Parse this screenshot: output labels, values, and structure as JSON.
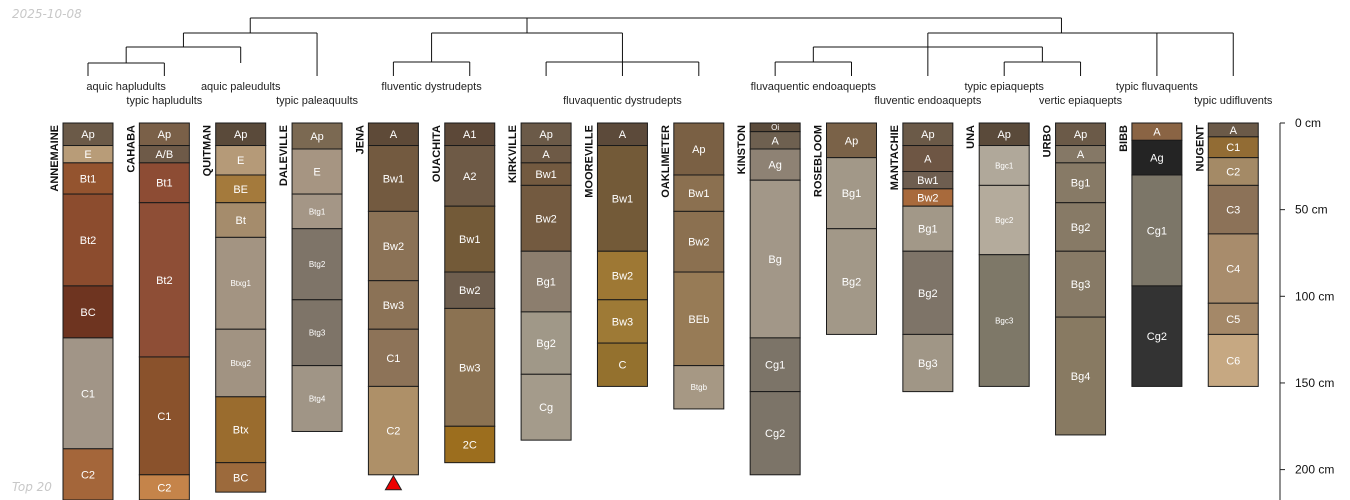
{
  "date_label": "2025-10-08",
  "footnote": "Top 20",
  "chart_data": {
    "type": "soil-profile-sketch",
    "depth_unit": "cm",
    "depth_axis": {
      "range": [
        0,
        220
      ],
      "ticks": [
        0,
        50,
        100,
        150,
        200
      ],
      "tick_labels": [
        "0 cm",
        "50 cm",
        "100 cm",
        "150 cm",
        "200 cm"
      ]
    },
    "taxa": [
      {
        "name": "aquic hapludults",
        "members": [
          "ANNEMAINE",
          "CAHABA"
        ]
      },
      {
        "name": "typic hapludults",
        "members": [
          "CAHABA"
        ]
      },
      {
        "name": "aquic paleudults",
        "members": [
          "QUITMAN"
        ]
      },
      {
        "name": "typic paleaquults",
        "members": [
          "DALEVILLE"
        ]
      },
      {
        "name": "fluventic dystrudepts",
        "members": [
          "JENA",
          "OUACHITA"
        ]
      },
      {
        "name": "fluvaquentic dystrudepts",
        "members": [
          "KIRKVILLE",
          "MOOREVILLE",
          "OAKLIMETER"
        ]
      },
      {
        "name": "fluvaquentic endoaquepts",
        "members": [
          "KINSTON",
          "ROSEBLOOM"
        ]
      },
      {
        "name": "fluventic endoaquepts",
        "members": [
          "MANTACHIE"
        ]
      },
      {
        "name": "typic epiaquepts",
        "members": [
          "UNA"
        ]
      },
      {
        "name": "vertic epiaquepts",
        "members": [
          "URBO"
        ]
      },
      {
        "name": "typic fluvaquents",
        "members": [
          "BIBB"
        ]
      },
      {
        "name": "typic udifluvents",
        "members": [
          "NUGENT"
        ]
      }
    ],
    "profiles": [
      {
        "name": "ANNEMAINE",
        "horizons": [
          {
            "name": "Ap",
            "top": 0,
            "bottom": 13,
            "color": "#6b5a48"
          },
          {
            "name": "E",
            "top": 13,
            "bottom": 23,
            "color": "#b89c78"
          },
          {
            "name": "Bt1",
            "top": 23,
            "bottom": 41,
            "color": "#94542f"
          },
          {
            "name": "Bt2",
            "top": 41,
            "bottom": 94,
            "color": "#8c4c2e"
          },
          {
            "name": "BC",
            "top": 94,
            "bottom": 124,
            "color": "#6e3420"
          },
          {
            "name": "C1",
            "top": 124,
            "bottom": 188,
            "color": "#a19587"
          },
          {
            "name": "C2",
            "top": 188,
            "bottom": 220,
            "color": "#a4663a"
          }
        ]
      },
      {
        "name": "CAHABA",
        "horizons": [
          {
            "name": "Ap",
            "top": 0,
            "bottom": 13,
            "color": "#7a6048"
          },
          {
            "name": "A/B",
            "top": 13,
            "bottom": 23,
            "color": "#6e5a48"
          },
          {
            "name": "Bt1",
            "top": 23,
            "bottom": 46,
            "color": "#8d4c34"
          },
          {
            "name": "Bt2",
            "top": 46,
            "bottom": 135,
            "color": "#8e4e36"
          },
          {
            "name": "C1",
            "top": 135,
            "bottom": 203,
            "color": "#8a522c"
          },
          {
            "name": "C2",
            "top": 203,
            "bottom": 220,
            "color": "#c5844a"
          }
        ]
      },
      {
        "name": "QUITMAN",
        "horizons": [
          {
            "name": "Ap",
            "top": 0,
            "bottom": 13,
            "color": "#5a4a3a"
          },
          {
            "name": "E",
            "top": 13,
            "bottom": 30,
            "color": "#b59a78"
          },
          {
            "name": "BE",
            "top": 30,
            "bottom": 46,
            "color": "#a47a3c"
          },
          {
            "name": "Bt",
            "top": 46,
            "bottom": 66,
            "color": "#a58c6c"
          },
          {
            "name": "Btxg1",
            "top": 66,
            "bottom": 119,
            "color": "#a39482"
          },
          {
            "name": "Btxg2",
            "top": 119,
            "bottom": 158,
            "color": "#a19382"
          },
          {
            "name": "Btx",
            "top": 158,
            "bottom": 196,
            "color": "#9a6c2e"
          },
          {
            "name": "BC",
            "top": 196,
            "bottom": 213,
            "color": "#9c6a3c"
          }
        ]
      },
      {
        "name": "DALEVILLE",
        "horizons": [
          {
            "name": "Ap",
            "top": 0,
            "bottom": 15,
            "color": "#7b6952"
          },
          {
            "name": "E",
            "top": 15,
            "bottom": 41,
            "color": "#a69582"
          },
          {
            "name": "Btg1",
            "top": 41,
            "bottom": 61,
            "color": "#a49686"
          },
          {
            "name": "Btg2",
            "top": 61,
            "bottom": 102,
            "color": "#7e7468"
          },
          {
            "name": "Btg3",
            "top": 102,
            "bottom": 140,
            "color": "#7e7468"
          },
          {
            "name": "Btg4",
            "top": 140,
            "bottom": 178,
            "color": "#a09586"
          }
        ]
      },
      {
        "name": "JENA",
        "horizons": [
          {
            "name": "A",
            "top": 0,
            "bottom": 13,
            "color": "#5e4a38"
          },
          {
            "name": "Bw1",
            "top": 13,
            "bottom": 51,
            "color": "#735a40"
          },
          {
            "name": "Bw2",
            "top": 51,
            "bottom": 91,
            "color": "#8b7256"
          },
          {
            "name": "Bw3",
            "top": 91,
            "bottom": 119,
            "color": "#8b7256"
          },
          {
            "name": "C1",
            "top": 119,
            "bottom": 152,
            "color": "#8d7358"
          },
          {
            "name": "C2",
            "top": 152,
            "bottom": 203,
            "color": "#ae9068"
          }
        ]
      },
      {
        "name": "OUACHITA",
        "horizons": [
          {
            "name": "A1",
            "top": 0,
            "bottom": 13,
            "color": "#5c4838"
          },
          {
            "name": "A2",
            "top": 13,
            "bottom": 48,
            "color": "#6e5a46"
          },
          {
            "name": "Bw1",
            "top": 48,
            "bottom": 86,
            "color": "#735a38"
          },
          {
            "name": "Bw2",
            "top": 86,
            "bottom": 107,
            "color": "#6e5e4e"
          },
          {
            "name": "Bw3",
            "top": 107,
            "bottom": 175,
            "color": "#8b7252"
          },
          {
            "name": "2C",
            "top": 175,
            "bottom": 196,
            "color": "#9c6e1e"
          }
        ]
      },
      {
        "name": "KIRKVILLE",
        "horizons": [
          {
            "name": "Ap",
            "top": 0,
            "bottom": 13,
            "color": "#6b5a48"
          },
          {
            "name": "A",
            "top": 13,
            "bottom": 23,
            "color": "#6e5a46"
          },
          {
            "name": "Bw1",
            "top": 23,
            "bottom": 36,
            "color": "#735a40"
          },
          {
            "name": "Bw2",
            "top": 36,
            "bottom": 74,
            "color": "#735a40"
          },
          {
            "name": "Bg1",
            "top": 74,
            "bottom": 109,
            "color": "#8c7e6e"
          },
          {
            "name": "Bg2",
            "top": 109,
            "bottom": 145,
            "color": "#a09888"
          },
          {
            "name": "Cg",
            "top": 145,
            "bottom": 183,
            "color": "#a49b8b"
          }
        ]
      },
      {
        "name": "MOOREVILLE",
        "horizons": [
          {
            "name": "A",
            "top": 0,
            "bottom": 13,
            "color": "#5c4a3a"
          },
          {
            "name": "Bw1",
            "top": 13,
            "bottom": 74,
            "color": "#735a38"
          },
          {
            "name": "Bw2",
            "top": 74,
            "bottom": 102,
            "color": "#9e7834"
          },
          {
            "name": "Bw3",
            "top": 102,
            "bottom": 127,
            "color": "#9e7a36"
          },
          {
            "name": "C",
            "top": 127,
            "bottom": 152,
            "color": "#94712e"
          }
        ]
      },
      {
        "name": "OAKLIMETER",
        "horizons": [
          {
            "name": "Ap",
            "top": 0,
            "bottom": 30,
            "color": "#7a6044"
          },
          {
            "name": "Bw1",
            "top": 30,
            "bottom": 51,
            "color": "#8b7050"
          },
          {
            "name": "Bw2",
            "top": 51,
            "bottom": 86,
            "color": "#8b7050"
          },
          {
            "name": "BEb",
            "top": 86,
            "bottom": 140,
            "color": "#977b56"
          },
          {
            "name": "Btgb",
            "top": 140,
            "bottom": 165,
            "color": "#a69884"
          }
        ]
      },
      {
        "name": "KINSTON",
        "horizons": [
          {
            "name": "Oi",
            "top": 0,
            "bottom": 5,
            "color": "#5a4a3a"
          },
          {
            "name": "A",
            "top": 5,
            "bottom": 15,
            "color": "#6e6050"
          },
          {
            "name": "Ag",
            "top": 15,
            "bottom": 33,
            "color": "#8e8274"
          },
          {
            "name": "Bg",
            "top": 33,
            "bottom": 124,
            "color": "#a29788"
          },
          {
            "name": "Cg1",
            "top": 124,
            "bottom": 155,
            "color": "#7c7468"
          },
          {
            "name": "Cg2",
            "top": 155,
            "bottom": 203,
            "color": "#7c7468"
          }
        ]
      },
      {
        "name": "ROSEBLOOM",
        "horizons": [
          {
            "name": "Ap",
            "top": 0,
            "bottom": 20,
            "color": "#7a6248"
          },
          {
            "name": "Bg1",
            "top": 20,
            "bottom": 61,
            "color": "#a29888"
          },
          {
            "name": "Bg2",
            "top": 61,
            "bottom": 122,
            "color": "#a29888"
          }
        ]
      },
      {
        "name": "MANTACHIE",
        "horizons": [
          {
            "name": "Ap",
            "top": 0,
            "bottom": 13,
            "color": "#6b5a48"
          },
          {
            "name": "A",
            "top": 13,
            "bottom": 28,
            "color": "#6e5644"
          },
          {
            "name": "Bw1",
            "top": 28,
            "bottom": 38,
            "color": "#6e5e50"
          },
          {
            "name": "Bw2",
            "top": 38,
            "bottom": 48,
            "color": "#a86a3c"
          },
          {
            "name": "Bg1",
            "top": 48,
            "bottom": 74,
            "color": "#a29888"
          },
          {
            "name": "Bg2",
            "top": 74,
            "bottom": 122,
            "color": "#7e7468"
          },
          {
            "name": "Bg3",
            "top": 122,
            "bottom": 155,
            "color": "#a09686"
          }
        ]
      },
      {
        "name": "UNA",
        "horizons": [
          {
            "name": "Ap",
            "top": 0,
            "bottom": 13,
            "color": "#5a4a3a"
          },
          {
            "name": "Bgc1",
            "top": 13,
            "bottom": 36,
            "color": "#b0a89a"
          },
          {
            "name": "Bgc2",
            "top": 36,
            "bottom": 76,
            "color": "#b4ab9c"
          },
          {
            "name": "Bgc3",
            "top": 76,
            "bottom": 152,
            "color": "#7e7868"
          }
        ]
      },
      {
        "name": "URBO",
        "horizons": [
          {
            "name": "Ap",
            "top": 0,
            "bottom": 13,
            "color": "#6b5a48"
          },
          {
            "name": "A",
            "top": 13,
            "bottom": 23,
            "color": "#857866"
          },
          {
            "name": "Bg1",
            "top": 23,
            "bottom": 46,
            "color": "#877a66"
          },
          {
            "name": "Bg2",
            "top": 46,
            "bottom": 74,
            "color": "#877a66"
          },
          {
            "name": "Bg3",
            "top": 74,
            "bottom": 112,
            "color": "#877a66"
          },
          {
            "name": "Bg4",
            "top": 112,
            "bottom": 180,
            "color": "#887a62"
          }
        ]
      },
      {
        "name": "BIBB",
        "horizons": [
          {
            "name": "A",
            "top": 0,
            "bottom": 10,
            "color": "#8a6444"
          },
          {
            "name": "Ag",
            "top": 10,
            "bottom": 30,
            "color": "#242424"
          },
          {
            "name": "Cg1",
            "top": 30,
            "bottom": 94,
            "color": "#7c7668"
          },
          {
            "name": "Cg2",
            "top": 94,
            "bottom": 152,
            "color": "#333333"
          }
        ]
      },
      {
        "name": "NUGENT",
        "horizons": [
          {
            "name": "A",
            "top": 0,
            "bottom": 8,
            "color": "#6b5a48"
          },
          {
            "name": "C1",
            "top": 8,
            "bottom": 20,
            "color": "#926c34"
          },
          {
            "name": "C2",
            "top": 20,
            "bottom": 36,
            "color": "#a48a66"
          },
          {
            "name": "C3",
            "top": 36,
            "bottom": 64,
            "color": "#8c7258"
          },
          {
            "name": "C4",
            "top": 64,
            "bottom": 104,
            "color": "#a88c6c"
          },
          {
            "name": "C5",
            "top": 104,
            "bottom": 122,
            "color": "#a48868"
          },
          {
            "name": "C6",
            "top": 122,
            "bottom": 152,
            "color": "#c6a882"
          }
        ]
      }
    ],
    "truncated_profiles": [
      "JENA"
    ],
    "dendrogram": {
      "root": {
        "children": [
          "left",
          "center",
          "right"
        ]
      },
      "left": {
        "children": [
          [
            "ANNEMAINE",
            "CAHABA"
          ],
          "QUITMAN",
          "DALEVILLE"
        ]
      },
      "center": {
        "children": [
          [
            "JENA",
            "OUACHITA"
          ],
          [
            "KIRKVILLE",
            "MOOREVILLE",
            "OAKLIMETER"
          ]
        ]
      },
      "right": {
        "children": [
          [
            "KINSTON",
            "ROSEBLOOM"
          ],
          "MANTACHIE",
          [
            "UNA",
            "URBO"
          ],
          [
            "BIBB",
            "NUGENT"
          ]
        ]
      }
    }
  }
}
